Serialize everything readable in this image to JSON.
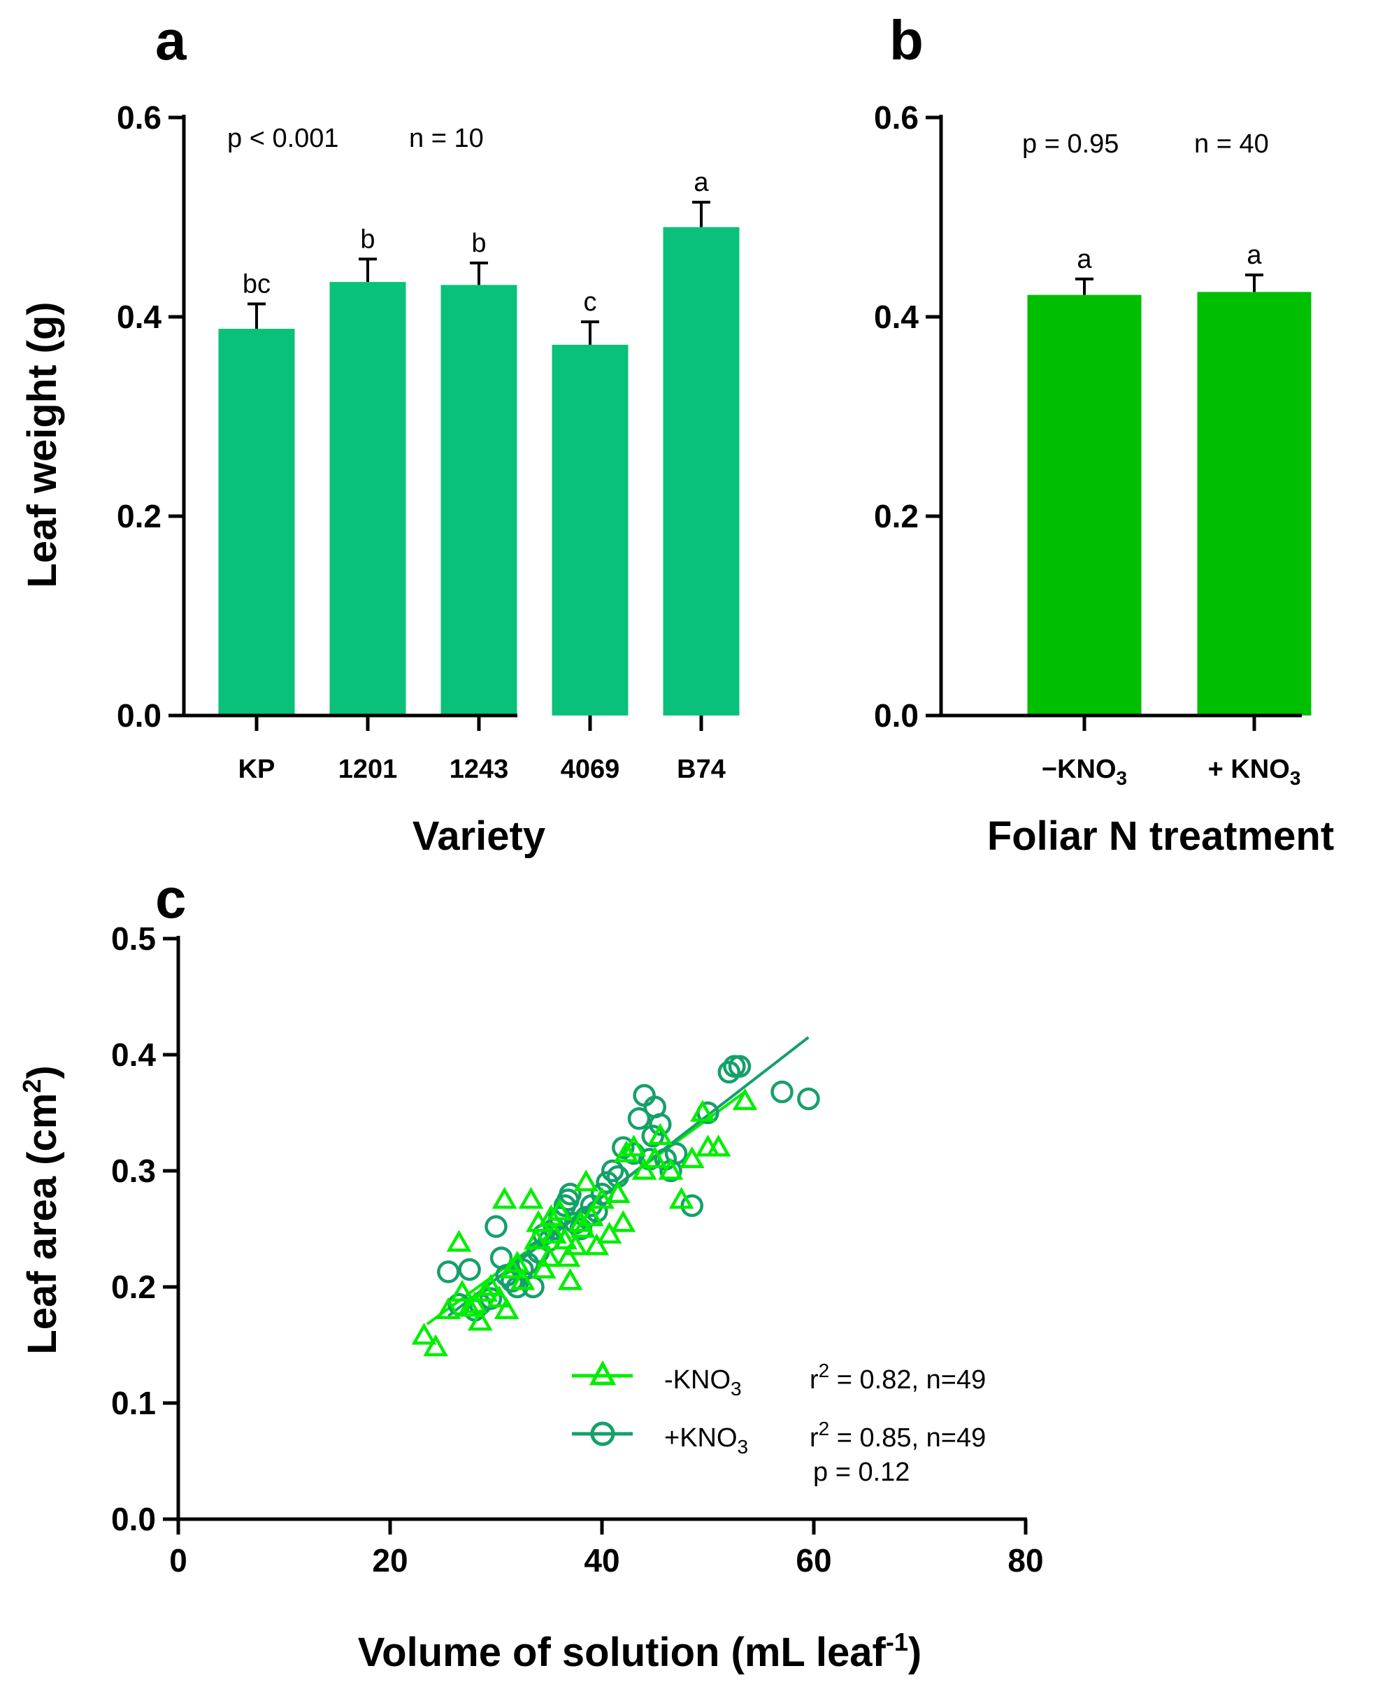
{
  "chart_data": [
    {
      "panel": "a",
      "type": "bar",
      "categories": [
        "KP",
        "1201",
        "1243",
        "4069",
        "B74"
      ],
      "values": [
        0.388,
        0.435,
        0.432,
        0.372,
        0.49
      ],
      "errors": [
        0.025,
        0.023,
        0.022,
        0.023,
        0.025
      ],
      "letters": [
        "bc",
        "b",
        "b",
        "c",
        "a"
      ],
      "bar_color": "#09c17a",
      "xlabel": "Variety",
      "ylabel": "Leaf weight  (g)",
      "ylim": [
        0,
        0.6
      ],
      "yticks": [
        "0.0",
        "0.2",
        "0.4",
        "0.6"
      ],
      "p_text": "p < 0.001",
      "n_text": "n = 10"
    },
    {
      "panel": "b",
      "type": "bar",
      "categories": [
        {
          "pre": "−KNO",
          "sub": "3"
        },
        {
          "pre": "+ KNO",
          "sub": "3"
        }
      ],
      "values": [
        0.422,
        0.425
      ],
      "errors": [
        0.016,
        0.017
      ],
      "letters": [
        "a",
        "a"
      ],
      "bar_color": "#00bf00",
      "xlabel": "Foliar N treatment",
      "ylim": [
        0,
        0.6
      ],
      "yticks": [
        "0.0",
        "0.2",
        "0.4",
        "0.6"
      ],
      "p_text": "p = 0.95",
      "n_text": "n = 40"
    },
    {
      "panel": "c",
      "type": "scatter",
      "xlim": [
        0,
        80
      ],
      "ylim": [
        0,
        0.5
      ],
      "xticks": [
        "0",
        "20",
        "40",
        "60",
        "80"
      ],
      "yticks": [
        "0.0",
        "0.1",
        "0.2",
        "0.3",
        "0.4",
        "0.5"
      ],
      "xlabel": {
        "pre": "Volume of solution (mL leaf",
        "sup": "-1",
        "post": ")"
      },
      "ylabel": {
        "pre": "Leaf area  (cm",
        "sup": "2",
        "post": ")"
      },
      "series": [
        {
          "name": "-KNO3",
          "label_pre": "-KNO",
          "label_sub": "3",
          "marker": "triangle",
          "color": "#00ee00",
          "stats_pre": "r",
          "stats_sup": "2",
          "stats_post": " = 0.82, n=49",
          "fit": [
            [
              23.5,
              0.168
            ],
            [
              53.5,
              0.368
            ]
          ],
          "points": [
            [
              23.2,
              0.158
            ],
            [
              24.3,
              0.148
            ],
            [
              26.5,
              0.238
            ],
            [
              25.5,
              0.18
            ],
            [
              26.8,
              0.195
            ],
            [
              27.5,
              0.182
            ],
            [
              28.0,
              0.185
            ],
            [
              28.5,
              0.17
            ],
            [
              29.5,
              0.2
            ],
            [
              30.3,
              0.19
            ],
            [
              31.0,
              0.18
            ],
            [
              30.8,
              0.275
            ],
            [
              31.5,
              0.215
            ],
            [
              32.5,
              0.205
            ],
            [
              33.3,
              0.275
            ],
            [
              34.0,
              0.255
            ],
            [
              34.5,
              0.215
            ],
            [
              35.0,
              0.225
            ],
            [
              35.5,
              0.245
            ],
            [
              36.0,
              0.265
            ],
            [
              36.5,
              0.24
            ],
            [
              37.0,
              0.205
            ],
            [
              37.5,
              0.235
            ],
            [
              38.0,
              0.255
            ],
            [
              38.5,
              0.29
            ],
            [
              39.0,
              0.26
            ],
            [
              39.5,
              0.235
            ],
            [
              40.0,
              0.275
            ],
            [
              40.7,
              0.245
            ],
            [
              41.5,
              0.28
            ],
            [
              42.0,
              0.255
            ],
            [
              42.3,
              0.315
            ],
            [
              43.0,
              0.32
            ],
            [
              44.0,
              0.3
            ],
            [
              45.0,
              0.31
            ],
            [
              45.5,
              0.33
            ],
            [
              46.5,
              0.3
            ],
            [
              47.5,
              0.275
            ],
            [
              48.5,
              0.31
            ],
            [
              49.5,
              0.35
            ],
            [
              50.0,
              0.32
            ],
            [
              51.0,
              0.32
            ],
            [
              53.5,
              0.36
            ],
            [
              32.0,
              0.22
            ],
            [
              35.2,
              0.26
            ],
            [
              38.2,
              0.25
            ],
            [
              36.8,
              0.225
            ],
            [
              33.8,
              0.24
            ],
            [
              29.0,
              0.195
            ]
          ]
        },
        {
          "name": "+KNO3",
          "label_pre": "+KNO",
          "label_sub": "3",
          "marker": "circle",
          "color": "#15a06a",
          "stats_pre": "r",
          "stats_sup": "2",
          "stats_post": " = 0.85, n=49",
          "fit": [
            [
              25.5,
              0.175
            ],
            [
              59.5,
              0.415
            ]
          ],
          "points": [
            [
              25.5,
              0.213
            ],
            [
              26.5,
              0.185
            ],
            [
              27.5,
              0.215
            ],
            [
              28.5,
              0.185
            ],
            [
              29.5,
              0.19
            ],
            [
              30.0,
              0.252
            ],
            [
              30.5,
              0.225
            ],
            [
              31.0,
              0.21
            ],
            [
              32.0,
              0.2
            ],
            [
              32.5,
              0.215
            ],
            [
              33.0,
              0.22
            ],
            [
              33.5,
              0.2
            ],
            [
              34.0,
              0.23
            ],
            [
              35.0,
              0.24
            ],
            [
              35.5,
              0.25
            ],
            [
              36.0,
              0.26
            ],
            [
              36.5,
              0.27
            ],
            [
              37.0,
              0.28
            ],
            [
              37.5,
              0.255
            ],
            [
              38.0,
              0.25
            ],
            [
              38.5,
              0.26
            ],
            [
              39.0,
              0.27
            ],
            [
              40.0,
              0.28
            ],
            [
              40.5,
              0.29
            ],
            [
              41.0,
              0.3
            ],
            [
              42.0,
              0.32
            ],
            [
              43.0,
              0.315
            ],
            [
              43.5,
              0.345
            ],
            [
              44.0,
              0.365
            ],
            [
              44.5,
              0.31
            ],
            [
              45.0,
              0.355
            ],
            [
              45.5,
              0.34
            ],
            [
              46.0,
              0.31
            ],
            [
              46.5,
              0.3
            ],
            [
              47.0,
              0.315
            ],
            [
              48.5,
              0.27
            ],
            [
              50.0,
              0.35
            ],
            [
              52.0,
              0.385
            ],
            [
              52.5,
              0.39
            ],
            [
              53.0,
              0.39
            ],
            [
              57.0,
              0.368
            ],
            [
              59.5,
              0.362
            ],
            [
              44.8,
              0.33
            ],
            [
              41.5,
              0.295
            ],
            [
              39.5,
              0.265
            ],
            [
              36.8,
              0.275
            ],
            [
              34.5,
              0.245
            ],
            [
              31.5,
              0.205
            ],
            [
              28.0,
              0.18
            ]
          ]
        }
      ],
      "p_text": "p =  0.12"
    }
  ],
  "panel_labels": [
    "a",
    "b",
    "c"
  ]
}
